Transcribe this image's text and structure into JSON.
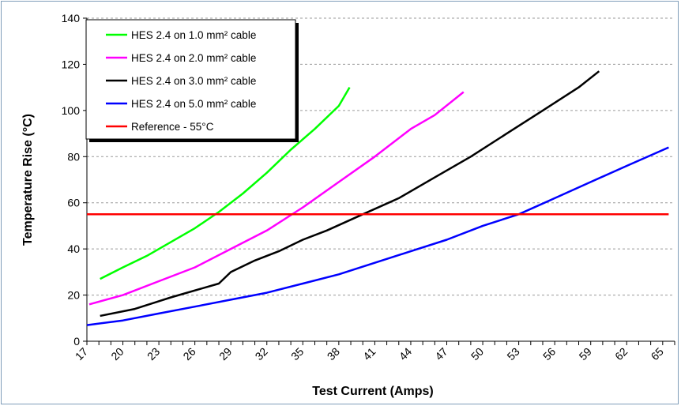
{
  "chart_data": {
    "type": "line",
    "title": "",
    "xlabel": "Test Current (Amps)",
    "ylabel": "Temperature Rise (°C)",
    "xlim": [
      17,
      66
    ],
    "ylim": [
      0,
      140
    ],
    "x_ticks": [
      17,
      20,
      23,
      26,
      29,
      32,
      35,
      38,
      41,
      44,
      47,
      50,
      53,
      56,
      59,
      62,
      65
    ],
    "y_ticks": [
      0,
      20,
      40,
      60,
      80,
      100,
      120,
      140
    ],
    "grid": "horizontal dashed",
    "legend_position": "top-left",
    "series": [
      {
        "name": "HES 2.4 on 1.0 mm² cable",
        "color": "#00ff00",
        "x": [
          18.1,
          20.0,
          22.0,
          24.0,
          26.0,
          28.0,
          30.0,
          32.0,
          34.0,
          36.0,
          38.0,
          38.9
        ],
        "y": [
          27,
          32,
          37,
          43,
          49,
          56,
          64,
          73,
          83,
          92,
          102,
          110
        ]
      },
      {
        "name": "HES 2.4 on 2.0 mm² cable",
        "color": "#ff00ff",
        "x": [
          17.2,
          20.0,
          23.0,
          26.0,
          29.0,
          32.0,
          35.0,
          38.0,
          41.0,
          44.0,
          46.0,
          48.4
        ],
        "y": [
          16,
          20,
          26,
          32,
          40,
          48,
          58,
          69,
          80,
          92,
          98,
          108
        ]
      },
      {
        "name": "HES 2.4 on 3.0 mm² cable",
        "color": "#000000",
        "x": [
          18.1,
          21.0,
          24.0,
          28.0,
          29.0,
          31.0,
          33.0,
          35.0,
          37.0,
          40.0,
          43.0,
          46.0,
          49.0,
          52.0,
          55.0,
          58.0,
          59.7
        ],
        "y": [
          11,
          14,
          19,
          25,
          30,
          35,
          39,
          44,
          48,
          55,
          62,
          71,
          80,
          90,
          100,
          110,
          117
        ]
      },
      {
        "name": "HES 2.4 on 5.0 mm² cable",
        "color": "#0000ff",
        "x": [
          17.0,
          20.0,
          23.0,
          26.0,
          29.0,
          32.0,
          35.0,
          38.0,
          41.0,
          44.0,
          47.0,
          50.0,
          53.0,
          56.0,
          59.0,
          62.0,
          65.5
        ],
        "y": [
          7,
          9,
          12,
          15,
          18,
          21,
          25,
          29,
          34,
          39,
          44,
          50,
          55,
          62,
          69,
          76,
          84
        ]
      },
      {
        "name": "Reference - 55°C",
        "color": "#ff0000",
        "x": [
          17.0,
          65.5
        ],
        "y": [
          55,
          55
        ]
      }
    ]
  }
}
